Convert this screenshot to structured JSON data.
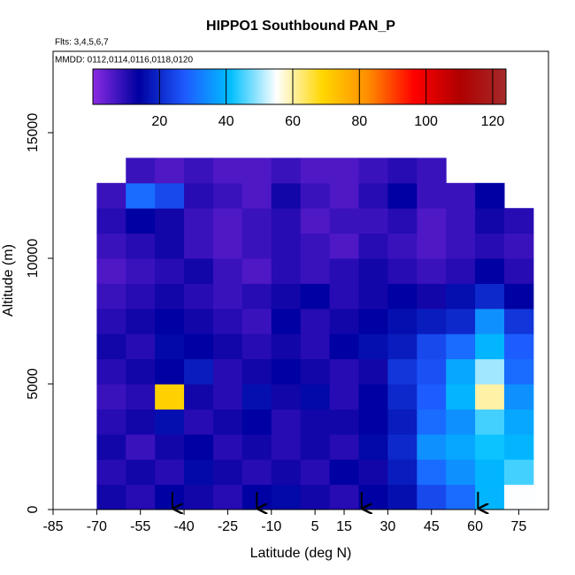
{
  "chart_data": {
    "type": "heatmap",
    "title": "HIPPO1 Southbound PAN_P",
    "subtitle": "Flts: 3,4,5,6,7",
    "annotation": "MMDD: 0112,0114,0116,0118,0120",
    "x_label": "Latitude (deg N)",
    "y_label": "Altitude (m)",
    "xlim": [
      -85,
      85.2
    ],
    "ylim": [
      0,
      18240
    ],
    "xticks": [
      -85,
      -70,
      -55,
      -40,
      -25,
      -10,
      5,
      15,
      30,
      45,
      60,
      75
    ],
    "yticks": [
      0,
      5000,
      10000,
      15000
    ],
    "xbins": [
      -70,
      -60,
      -50,
      -40,
      -30,
      -20,
      -10,
      0,
      10,
      20,
      30,
      40,
      50,
      60,
      70,
      80
    ],
    "ybins": [
      0,
      1000,
      2000,
      3000,
      4000,
      5000,
      6000,
      7000,
      8000,
      9000,
      10000,
      11000,
      12000,
      13000,
      14000
    ],
    "values": [
      [
        12,
        10,
        14,
        12,
        10,
        14,
        15,
        12,
        10,
        14,
        16,
        25,
        30,
        40,
        55
      ],
      [
        10,
        12,
        10,
        15,
        12,
        10,
        12,
        10,
        14,
        12,
        18,
        30,
        35,
        40,
        45
      ],
      [
        12,
        8,
        12,
        14,
        10,
        12,
        10,
        12,
        10,
        15,
        20,
        35,
        38,
        42,
        40
      ],
      [
        10,
        12,
        16,
        10,
        12,
        14,
        10,
        12,
        12,
        14,
        18,
        30,
        35,
        45,
        38
      ],
      [
        8,
        10,
        70,
        12,
        10,
        16,
        12,
        15,
        10,
        14,
        20,
        28,
        40,
        60,
        35
      ],
      [
        10,
        12,
        14,
        18,
        10,
        12,
        14,
        12,
        10,
        12,
        22,
        26,
        38,
        50,
        30
      ],
      [
        12,
        10,
        15,
        14,
        12,
        10,
        12,
        10,
        14,
        16,
        18,
        25,
        30,
        40,
        28
      ],
      [
        10,
        12,
        14,
        12,
        10,
        8,
        14,
        10,
        12,
        14,
        16,
        18,
        20,
        35,
        22
      ],
      [
        8,
        10,
        12,
        10,
        8,
        10,
        12,
        14,
        10,
        12,
        14,
        12,
        16,
        20,
        14
      ],
      [
        6,
        8,
        10,
        12,
        8,
        6,
        10,
        8,
        10,
        12,
        10,
        8,
        10,
        14,
        10
      ],
      [
        8,
        10,
        12,
        8,
        6,
        8,
        10,
        8,
        6,
        10,
        8,
        6,
        8,
        10,
        8
      ],
      [
        10,
        14,
        12,
        8,
        6,
        8,
        10,
        6,
        8,
        8,
        10,
        6,
        8,
        12,
        10
      ],
      [
        8,
        30,
        25,
        10,
        8,
        6,
        12,
        8,
        6,
        10,
        14,
        8,
        8,
        14,
        null
      ],
      [
        null,
        8,
        6,
        8,
        6,
        6,
        8,
        6,
        6,
        8,
        10,
        8,
        null,
        null,
        null
      ]
    ],
    "arrows": [
      -44,
      -15,
      21,
      61
    ],
    "colorbar": {
      "lim": [
        0,
        124
      ],
      "ticks": [
        20,
        40,
        60,
        80,
        100,
        120
      ],
      "colors": [
        "#8a2be2",
        "#0000a0",
        "#1e5aff",
        "#00bfff",
        "#ffffff",
        "#ffd700",
        "#ff8c00",
        "#ff0000",
        "#b00000",
        "#a52a2a"
      ]
    }
  }
}
